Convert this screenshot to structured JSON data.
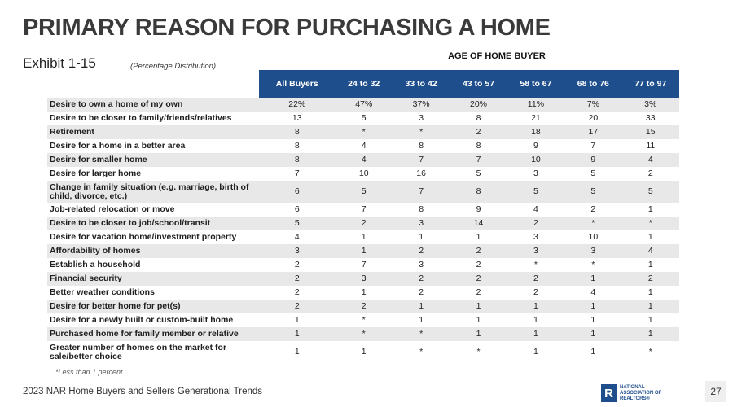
{
  "title": "PRIMARY REASON FOR PURCHASING A HOME",
  "exhibit": "Exhibit 1-15",
  "subtitle": "(Percentage Distribution)",
  "group_label": "AGE OF HOME BUYER",
  "headers": [
    "All Buyers",
    "24 to 32",
    "33 to 42",
    "43 to 57",
    "58 to 67",
    "68 to 76",
    "77 to 97"
  ],
  "rows": [
    {
      "label": "Desire to own a home of my own",
      "values": [
        "22%",
        "47%",
        "37%",
        "20%",
        "11%",
        "7%",
        "3%"
      ]
    },
    {
      "label": "Desire to be closer to family/friends/relatives",
      "values": [
        "13",
        "5",
        "3",
        "8",
        "21",
        "20",
        "33"
      ]
    },
    {
      "label": "Retirement",
      "values": [
        "8",
        "*",
        "*",
        "2",
        "18",
        "17",
        "15"
      ]
    },
    {
      "label": "Desire for a home in a better area",
      "values": [
        "8",
        "4",
        "8",
        "8",
        "9",
        "7",
        "11"
      ]
    },
    {
      "label": "Desire for smaller home",
      "values": [
        "8",
        "4",
        "7",
        "7",
        "10",
        "9",
        "4"
      ]
    },
    {
      "label": "Desire for larger home",
      "values": [
        "7",
        "10",
        "16",
        "5",
        "3",
        "5",
        "2"
      ]
    },
    {
      "label": "Change in family situation (e.g. marriage, birth of child, divorce, etc.)",
      "values": [
        "6",
        "5",
        "7",
        "8",
        "5",
        "5",
        "5"
      ]
    },
    {
      "label": "Job-related relocation or move",
      "values": [
        "6",
        "7",
        "8",
        "9",
        "4",
        "2",
        "1"
      ]
    },
    {
      "label": "Desire to be closer to job/school/transit",
      "values": [
        "5",
        "2",
        "3",
        "14",
        "2",
        "*",
        "*"
      ]
    },
    {
      "label": "Desire for vacation home/investment property",
      "values": [
        "4",
        "1",
        "1",
        "1",
        "3",
        "10",
        "1"
      ]
    },
    {
      "label": "Affordability of homes",
      "values": [
        "3",
        "1",
        "2",
        "2",
        "3",
        "3",
        "4"
      ]
    },
    {
      "label": "Establish a household",
      "values": [
        "2",
        "7",
        "3",
        "2",
        "*",
        "*",
        "1"
      ]
    },
    {
      "label": "Financial security",
      "values": [
        "2",
        "3",
        "2",
        "2",
        "2",
        "1",
        "2"
      ]
    },
    {
      "label": "Better weather conditions",
      "values": [
        "2",
        "1",
        "2",
        "2",
        "2",
        "4",
        "1"
      ]
    },
    {
      "label": "Desire for better home for pet(s)",
      "values": [
        "2",
        "2",
        "1",
        "1",
        "1",
        "1",
        "1"
      ]
    },
    {
      "label": "Desire for a newly built or custom-built home",
      "values": [
        "1",
        "*",
        "1",
        "1",
        "1",
        "1",
        "1"
      ]
    },
    {
      "label": "Purchased home for family member or relative",
      "values": [
        "1",
        "*",
        "*",
        "1",
        "1",
        "1",
        "1"
      ]
    },
    {
      "label": "Greater number of homes on the market for sale/better choice",
      "values": [
        "1",
        "1",
        "*",
        "*",
        "1",
        "1",
        "*"
      ]
    }
  ],
  "footnote": "*Less than 1 percent",
  "footer": "2023 NAR Home Buyers and Sellers Generational Trends",
  "logo": {
    "mark": "R",
    "text": "NATIONAL ASSOCIATION OF REALTORS®"
  },
  "page_number": "27",
  "colors": {
    "header_bg": "#1f4e8c",
    "stripe": "#e8e8e8"
  }
}
